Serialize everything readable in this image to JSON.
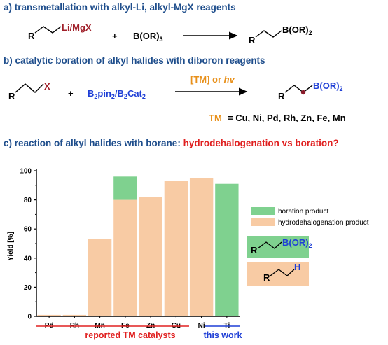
{
  "headers": {
    "a": "a) transmetallation with alkyl-Li, alkyl-MgX reagents",
    "b": "b) catalytic boration of alkyl halides with diboron reagents",
    "c_prefix": "c) reaction of alkyl halides with borane:",
    "c_question": "hydrodehalogenation vs boration?"
  },
  "scheme_a": {
    "reagent_metal": "Li/MgX",
    "r_label": "R",
    "plus": "+",
    "borane": "B(OR)",
    "borane_sub": "3",
    "product_boron": "B(OR)",
    "product_sub": "2"
  },
  "scheme_b": {
    "halide": "X",
    "r_label": "R",
    "plus": "+",
    "reagent": "B2pin2/B2Cat2",
    "condition": "[TM] or hv",
    "product_boron": "B(OR)",
    "product_sub": "2",
    "tm_label": "TM",
    "tm_list": "= Cu, Ni, Pd, Rh, Zn, Fe, Mn"
  },
  "chart_data": {
    "type": "bar",
    "stacked": true,
    "categories": [
      "Pd",
      "Rh",
      "Mn",
      "Fe",
      "Zn",
      "Cu",
      "Ni",
      "Ti"
    ],
    "series": [
      {
        "name": "hydrodehalogenation product",
        "values": [
          1,
          1,
          53,
          80,
          82,
          93,
          95,
          0
        ],
        "color": "#f8cba4"
      },
      {
        "name": "boration product",
        "values": [
          0,
          0,
          0,
          16,
          0,
          0,
          0,
          91
        ],
        "color": "#7fd18f"
      }
    ],
    "ylabel": "Yield [%]",
    "ylim": [
      0,
      100
    ],
    "yticks": [
      0,
      20,
      40,
      60,
      80,
      100
    ],
    "legend_position": "right",
    "group_labels": [
      {
        "text": "reported TM catalysts",
        "color": "#e02020"
      },
      {
        "text": "this work",
        "color": "#1f3fd6"
      }
    ]
  },
  "legend_structures": {
    "boration": {
      "r": "R",
      "boron": "B(OR)",
      "sub": "2"
    },
    "hydro": {
      "r": "R",
      "h": "H"
    }
  },
  "colors": {
    "header_blue": "#1f4e8c",
    "accent_red": "#e02020",
    "metal_red": "#a0202a",
    "boron_blue": "#1f3fd6",
    "orange": "#e8901a",
    "green": "#7fd18f",
    "peach": "#f8cba4"
  }
}
